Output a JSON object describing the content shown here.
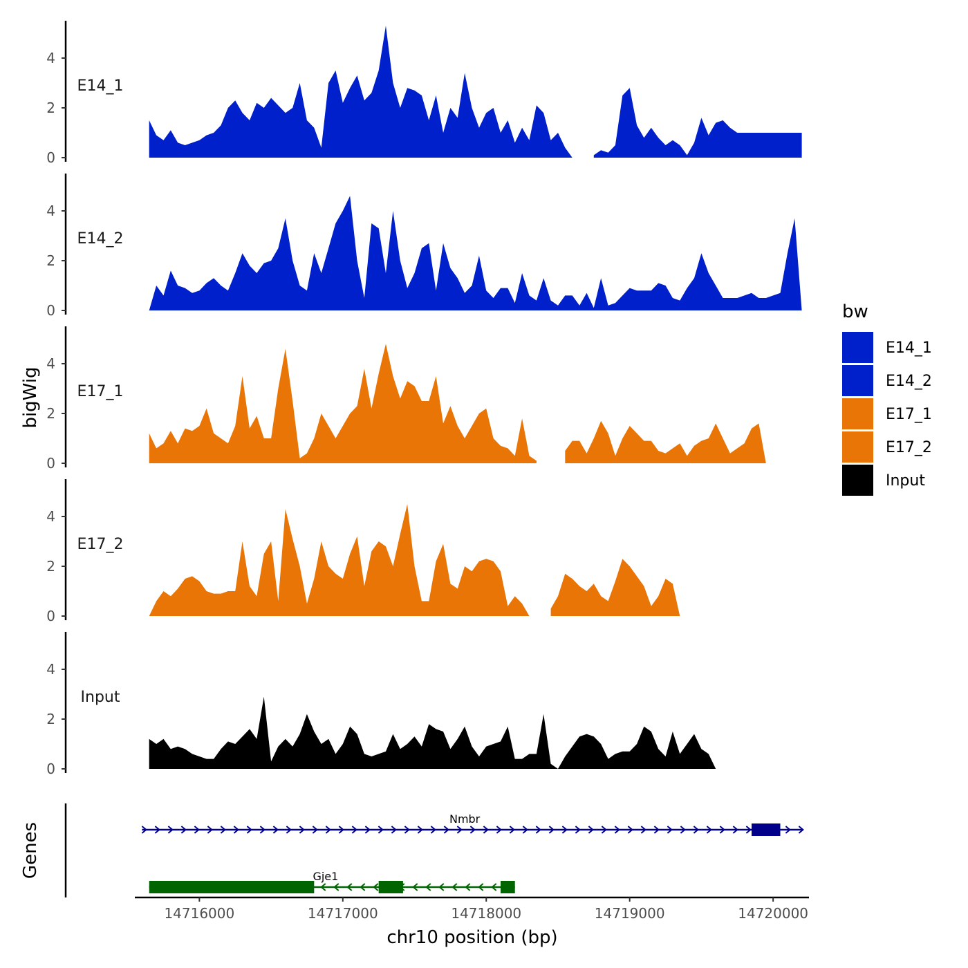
{
  "chart_data": {
    "type": "area",
    "title": "",
    "xlabel": "chr10 position (bp)",
    "ylabel": "bigWig",
    "genes_label": "Genes",
    "xlim": [
      14715550,
      14720250
    ],
    "x_ticks": [
      14716000,
      14717000,
      14718000,
      14719000,
      14720000
    ],
    "x_tick_labels": [
      "14716000",
      "14717000",
      "14718000",
      "14719000",
      "14720000"
    ],
    "ylim": [
      0,
      5.5
    ],
    "y_ticks": [
      0,
      2,
      4
    ],
    "y_tick_labels": [
      "0",
      "2",
      "4"
    ],
    "legend": {
      "title": "bw",
      "position": "right",
      "entries": [
        {
          "name": "E14_1",
          "color": "#0020CC"
        },
        {
          "name": "E14_2",
          "color": "#0020CC"
        },
        {
          "name": "E17_1",
          "color": "#E87505"
        },
        {
          "name": "E17_2",
          "color": "#E87505"
        },
        {
          "name": "Input",
          "color": "#000000"
        }
      ]
    },
    "series": [
      {
        "name": "E14_1",
        "color": "#0020CC",
        "x": [
          14715650,
          14715700,
          14715750,
          14715800,
          14715850,
          14715900,
          14715950,
          14716000,
          14716050,
          14716100,
          14716150,
          14716200,
          14716250,
          14716300,
          14716350,
          14716400,
          14716450,
          14716500,
          14716550,
          14716600,
          14716650,
          14716700,
          14716750,
          14716800,
          14716850,
          14716900,
          14716950,
          14717000,
          14717050,
          14717100,
          14717150,
          14717200,
          14717250,
          14717300,
          14717350,
          14717400,
          14717450,
          14717500,
          14717550,
          14717600,
          14717650,
          14717700,
          14717750,
          14717800,
          14717850,
          14717900,
          14717950,
          14718000,
          14718050,
          14718100,
          14718150,
          14718200,
          14718250,
          14718300,
          14718350,
          14718400,
          14718450,
          14718500,
          14718550,
          14718600,
          14718650,
          14718700,
          14718750,
          14718800,
          14718850,
          14718900,
          14718950,
          14719000,
          14719050,
          14719100,
          14719150,
          14719200,
          14719250,
          14719300,
          14719350,
          14719400,
          14719450,
          14719500,
          14719550,
          14719600,
          14719650,
          14719700,
          14719750,
          14719800,
          14719850,
          14719900,
          14719950,
          14720000,
          14720050,
          14720100,
          14720150,
          14720200
        ],
        "values": [
          1.5,
          0.9,
          0.7,
          1.1,
          0.6,
          0.5,
          0.6,
          0.7,
          0.9,
          1.0,
          1.3,
          2.0,
          2.3,
          1.8,
          1.5,
          2.2,
          2.0,
          2.4,
          2.1,
          1.8,
          2.0,
          3.0,
          1.5,
          1.2,
          0.4,
          3.0,
          3.5,
          2.2,
          2.8,
          3.3,
          2.3,
          2.6,
          3.5,
          5.3,
          3.0,
          2.0,
          2.8,
          2.7,
          2.5,
          1.5,
          2.5,
          1.0,
          2.0,
          1.6,
          3.4,
          2.0,
          1.2,
          1.8,
          2.0,
          1.0,
          1.5,
          0.6,
          1.2,
          0.7,
          2.1,
          1.8,
          0.7,
          1.0,
          0.4,
          0.0,
          null,
          null,
          0.1,
          0.3,
          0.2,
          0.5,
          2.5,
          2.8,
          1.3,
          0.8,
          1.2,
          0.8,
          0.5,
          0.7,
          0.5,
          0.1,
          0.6,
          1.6,
          0.9,
          1.4,
          1.5,
          1.2,
          1.0,
          1.0,
          1.0,
          1.0,
          1.0,
          1.0,
          1.0,
          1.0,
          1.0,
          1.0
        ]
      },
      {
        "name": "E14_2",
        "color": "#0020CC",
        "x": [
          14715650,
          14715700,
          14715750,
          14715800,
          14715850,
          14715900,
          14715950,
          14716000,
          14716050,
          14716100,
          14716150,
          14716200,
          14716250,
          14716300,
          14716350,
          14716400,
          14716450,
          14716500,
          14716550,
          14716600,
          14716650,
          14716700,
          14716750,
          14716800,
          14716850,
          14716900,
          14716950,
          14717000,
          14717050,
          14717100,
          14717150,
          14717200,
          14717250,
          14717300,
          14717350,
          14717400,
          14717450,
          14717500,
          14717550,
          14717600,
          14717650,
          14717700,
          14717750,
          14717800,
          14717850,
          14717900,
          14717950,
          14718000,
          14718050,
          14718100,
          14718150,
          14718200,
          14718250,
          14718300,
          14718350,
          14718400,
          14718450,
          14718500,
          14718550,
          14718600,
          14718650,
          14718700,
          14718750,
          14718800,
          14718850,
          14718900,
          14718950,
          14719000,
          14719050,
          14719100,
          14719150,
          14719200,
          14719250,
          14719300,
          14719350,
          14719400,
          14719450,
          14719500,
          14719550,
          14719600,
          14719650,
          14719700,
          14719750,
          14719800,
          14719850,
          14719900,
          14719950,
          14720000,
          14720050,
          14720100,
          14720150,
          14720200
        ],
        "values": [
          0.0,
          1.0,
          0.6,
          1.6,
          1.0,
          0.9,
          0.7,
          0.8,
          1.1,
          1.3,
          1.0,
          0.8,
          1.5,
          2.3,
          1.8,
          1.5,
          1.9,
          2.0,
          2.5,
          3.7,
          2.0,
          1.0,
          0.8,
          2.3,
          1.5,
          2.5,
          3.5,
          4.0,
          4.6,
          2.0,
          0.5,
          3.5,
          3.3,
          1.5,
          4.0,
          2.0,
          0.9,
          1.5,
          2.5,
          2.7,
          0.8,
          2.7,
          1.7,
          1.3,
          0.7,
          1.0,
          2.2,
          0.8,
          0.5,
          0.9,
          0.9,
          0.3,
          1.5,
          0.6,
          0.4,
          1.3,
          0.4,
          0.2,
          0.6,
          0.6,
          0.2,
          0.7,
          0.1,
          1.3,
          0.2,
          0.3,
          0.6,
          0.9,
          0.8,
          0.8,
          0.8,
          1.1,
          1.0,
          0.5,
          0.4,
          0.9,
          1.3,
          2.3,
          1.5,
          1.0,
          0.5,
          0.5,
          0.5,
          0.6,
          0.7,
          0.5,
          0.5,
          0.6,
          0.7,
          2.3,
          3.7,
          0.0
        ]
      },
      {
        "name": "E17_1",
        "color": "#E87505",
        "x": [
          14715650,
          14715700,
          14715750,
          14715800,
          14715850,
          14715900,
          14715950,
          14716000,
          14716050,
          14716100,
          14716150,
          14716200,
          14716250,
          14716300,
          14716350,
          14716400,
          14716450,
          14716500,
          14716550,
          14716600,
          14716650,
          14716700,
          14716750,
          14716800,
          14716850,
          14716900,
          14716950,
          14717000,
          14717050,
          14717100,
          14717150,
          14717200,
          14717250,
          14717300,
          14717350,
          14717400,
          14717450,
          14717500,
          14717550,
          14717600,
          14717650,
          14717700,
          14717750,
          14717800,
          14717850,
          14717900,
          14717950,
          14718000,
          14718050,
          14718100,
          14718150,
          14718200,
          14718250,
          14718300,
          14718350,
          14718400,
          14718450,
          14718500,
          14718550,
          14718600,
          14718650,
          14718700,
          14718750,
          14718800,
          14718850,
          14718900,
          14718950,
          14719000,
          14719050,
          14719100,
          14719150,
          14719200,
          14719250,
          14719300,
          14719350,
          14719400,
          14719450,
          14719500,
          14719550,
          14719600,
          14719650,
          14719700,
          14719750,
          14719800,
          14719850,
          14719900,
          14719950,
          14720000,
          14720050,
          14720100,
          14720150,
          14720200
        ],
        "values": [
          1.2,
          0.6,
          0.8,
          1.3,
          0.8,
          1.4,
          1.3,
          1.5,
          2.2,
          1.2,
          1.0,
          0.8,
          1.5,
          3.5,
          1.4,
          1.9,
          1.0,
          1.0,
          3.0,
          4.6,
          2.5,
          0.2,
          0.4,
          1.0,
          2.0,
          1.5,
          1.0,
          1.5,
          2.0,
          2.3,
          3.8,
          2.2,
          3.6,
          4.8,
          3.5,
          2.6,
          3.3,
          3.1,
          2.5,
          2.5,
          3.5,
          1.6,
          2.3,
          1.5,
          1.0,
          1.5,
          2.0,
          2.2,
          1.0,
          0.7,
          0.6,
          0.3,
          1.8,
          0.3,
          0.1,
          null,
          null,
          null,
          0.5,
          0.9,
          0.9,
          0.4,
          1.0,
          1.7,
          1.2,
          0.3,
          1.0,
          1.5,
          1.2,
          0.9,
          0.9,
          0.5,
          0.4,
          0.6,
          0.8,
          0.3,
          0.7,
          0.9,
          1.0,
          1.6,
          1.0,
          0.4,
          0.6,
          0.8,
          1.4,
          1.6,
          0.0,
          0.0,
          0.0,
          0.0,
          0.0,
          0.0
        ]
      },
      {
        "name": "E17_2",
        "color": "#E87505",
        "x": [
          14715650,
          14715700,
          14715750,
          14715800,
          14715850,
          14715900,
          14715950,
          14716000,
          14716050,
          14716100,
          14716150,
          14716200,
          14716250,
          14716300,
          14716350,
          14716400,
          14716450,
          14716500,
          14716550,
          14716600,
          14716650,
          14716700,
          14716750,
          14716800,
          14716850,
          14716900,
          14716950,
          14717000,
          14717050,
          14717100,
          14717150,
          14717200,
          14717250,
          14717300,
          14717350,
          14717400,
          14717450,
          14717500,
          14717550,
          14717600,
          14717650,
          14717700,
          14717750,
          14717800,
          14717850,
          14717900,
          14717950,
          14718000,
          14718050,
          14718100,
          14718150,
          14718200,
          14718250,
          14718300,
          14718350,
          14718400,
          14718450,
          14718500,
          14718550,
          14718600,
          14718650,
          14718700,
          14718750,
          14718800,
          14718850,
          14718900,
          14718950,
          14719000,
          14719050,
          14719100,
          14719150,
          14719200,
          14719250,
          14719300,
          14719350,
          14719400,
          14719450,
          14719500,
          14719550,
          14719600,
          14719650,
          14719700,
          14719750,
          14719800,
          14719850,
          14719900,
          14719950,
          14720000,
          14720050,
          14720100,
          14720150,
          14720200
        ],
        "values": [
          0.0,
          0.6,
          1.0,
          0.8,
          1.1,
          1.5,
          1.6,
          1.4,
          1.0,
          0.9,
          0.9,
          1.0,
          1.0,
          3.0,
          1.2,
          0.8,
          2.5,
          3.0,
          0.6,
          4.3,
          3.1,
          2.0,
          0.5,
          1.5,
          3.0,
          2.0,
          1.7,
          1.5,
          2.5,
          3.2,
          1.2,
          2.6,
          3.0,
          2.8,
          2.0,
          3.3,
          4.5,
          2.0,
          0.6,
          0.6,
          2.2,
          2.9,
          1.3,
          1.1,
          2.0,
          1.8,
          2.2,
          2.3,
          2.2,
          1.8,
          0.4,
          0.8,
          0.5,
          0.0,
          null,
          null,
          0.3,
          0.8,
          1.7,
          1.5,
          1.2,
          1.0,
          1.3,
          0.8,
          0.6,
          1.4,
          2.3,
          2.0,
          1.6,
          1.2,
          0.4,
          0.8,
          1.5,
          1.3,
          0.0,
          0.0,
          0.0,
          0.0,
          0.0,
          0.0,
          0.0,
          0.0,
          0.0,
          0.0,
          0.0,
          0.0,
          0.0,
          0.0,
          0.0,
          0.0,
          0.0,
          0.0
        ]
      },
      {
        "name": "Input",
        "color": "#000000",
        "x": [
          14715650,
          14715700,
          14715750,
          14715800,
          14715850,
          14715900,
          14715950,
          14716000,
          14716050,
          14716100,
          14716150,
          14716200,
          14716250,
          14716300,
          14716350,
          14716400,
          14716450,
          14716500,
          14716550,
          14716600,
          14716650,
          14716700,
          14716750,
          14716800,
          14716850,
          14716900,
          14716950,
          14717000,
          14717050,
          14717100,
          14717150,
          14717200,
          14717250,
          14717300,
          14717350,
          14717400,
          14717450,
          14717500,
          14717550,
          14717600,
          14717650,
          14717700,
          14717750,
          14717800,
          14717850,
          14717900,
          14717950,
          14718000,
          14718050,
          14718100,
          14718150,
          14718200,
          14718250,
          14718300,
          14718350,
          14718400,
          14718450,
          14718500,
          14718550,
          14718600,
          14718650,
          14718700,
          14718750,
          14718800,
          14718850,
          14718900,
          14718950,
          14719000,
          14719050,
          14719100,
          14719150,
          14719200,
          14719250,
          14719300,
          14719350,
          14719400,
          14719450,
          14719500,
          14719550,
          14719600,
          14719650,
          14719700,
          14719750,
          14719800,
          14719850,
          14719900,
          14719950,
          14720000,
          14720050,
          14720100,
          14720150,
          14720200
        ],
        "values": [
          1.2,
          1.0,
          1.2,
          0.8,
          0.9,
          0.8,
          0.6,
          0.5,
          0.4,
          0.4,
          0.8,
          1.1,
          1.0,
          1.3,
          1.6,
          1.2,
          2.9,
          0.3,
          0.9,
          1.2,
          0.9,
          1.4,
          2.2,
          1.5,
          1.0,
          1.2,
          0.6,
          1.0,
          1.7,
          1.4,
          0.6,
          0.5,
          0.6,
          0.7,
          1.4,
          0.8,
          1.0,
          1.3,
          0.9,
          1.8,
          1.6,
          1.5,
          0.8,
          1.2,
          1.7,
          0.9,
          0.5,
          0.9,
          1.0,
          1.1,
          1.7,
          0.4,
          0.4,
          0.6,
          0.6,
          2.2,
          0.2,
          0.0,
          0.5,
          0.9,
          1.3,
          1.4,
          1.3,
          1.0,
          0.4,
          0.6,
          0.7,
          0.7,
          1.0,
          1.7,
          1.5,
          0.8,
          0.5,
          1.5,
          0.6,
          1.0,
          1.4,
          0.8,
          0.6,
          0.0,
          0.0,
          0.0,
          0.0,
          0.0,
          0.0,
          0.0,
          0.0,
          0.0,
          0.0,
          0.0,
          0.0,
          0.0
        ]
      }
    ],
    "genes": [
      {
        "name": "Nmbr",
        "strand": "+",
        "color": "#00008B",
        "start": 14715600,
        "end": 14720200,
        "exons": [
          [
            14719850,
            14720050
          ]
        ]
      },
      {
        "name": "Gje1",
        "strand": "-",
        "color": "#006400",
        "start": 14715650,
        "end": 14718200,
        "exons": [
          [
            14715650,
            14716800
          ],
          [
            14717250,
            14717420
          ],
          [
            14718100,
            14718200
          ]
        ]
      }
    ]
  }
}
